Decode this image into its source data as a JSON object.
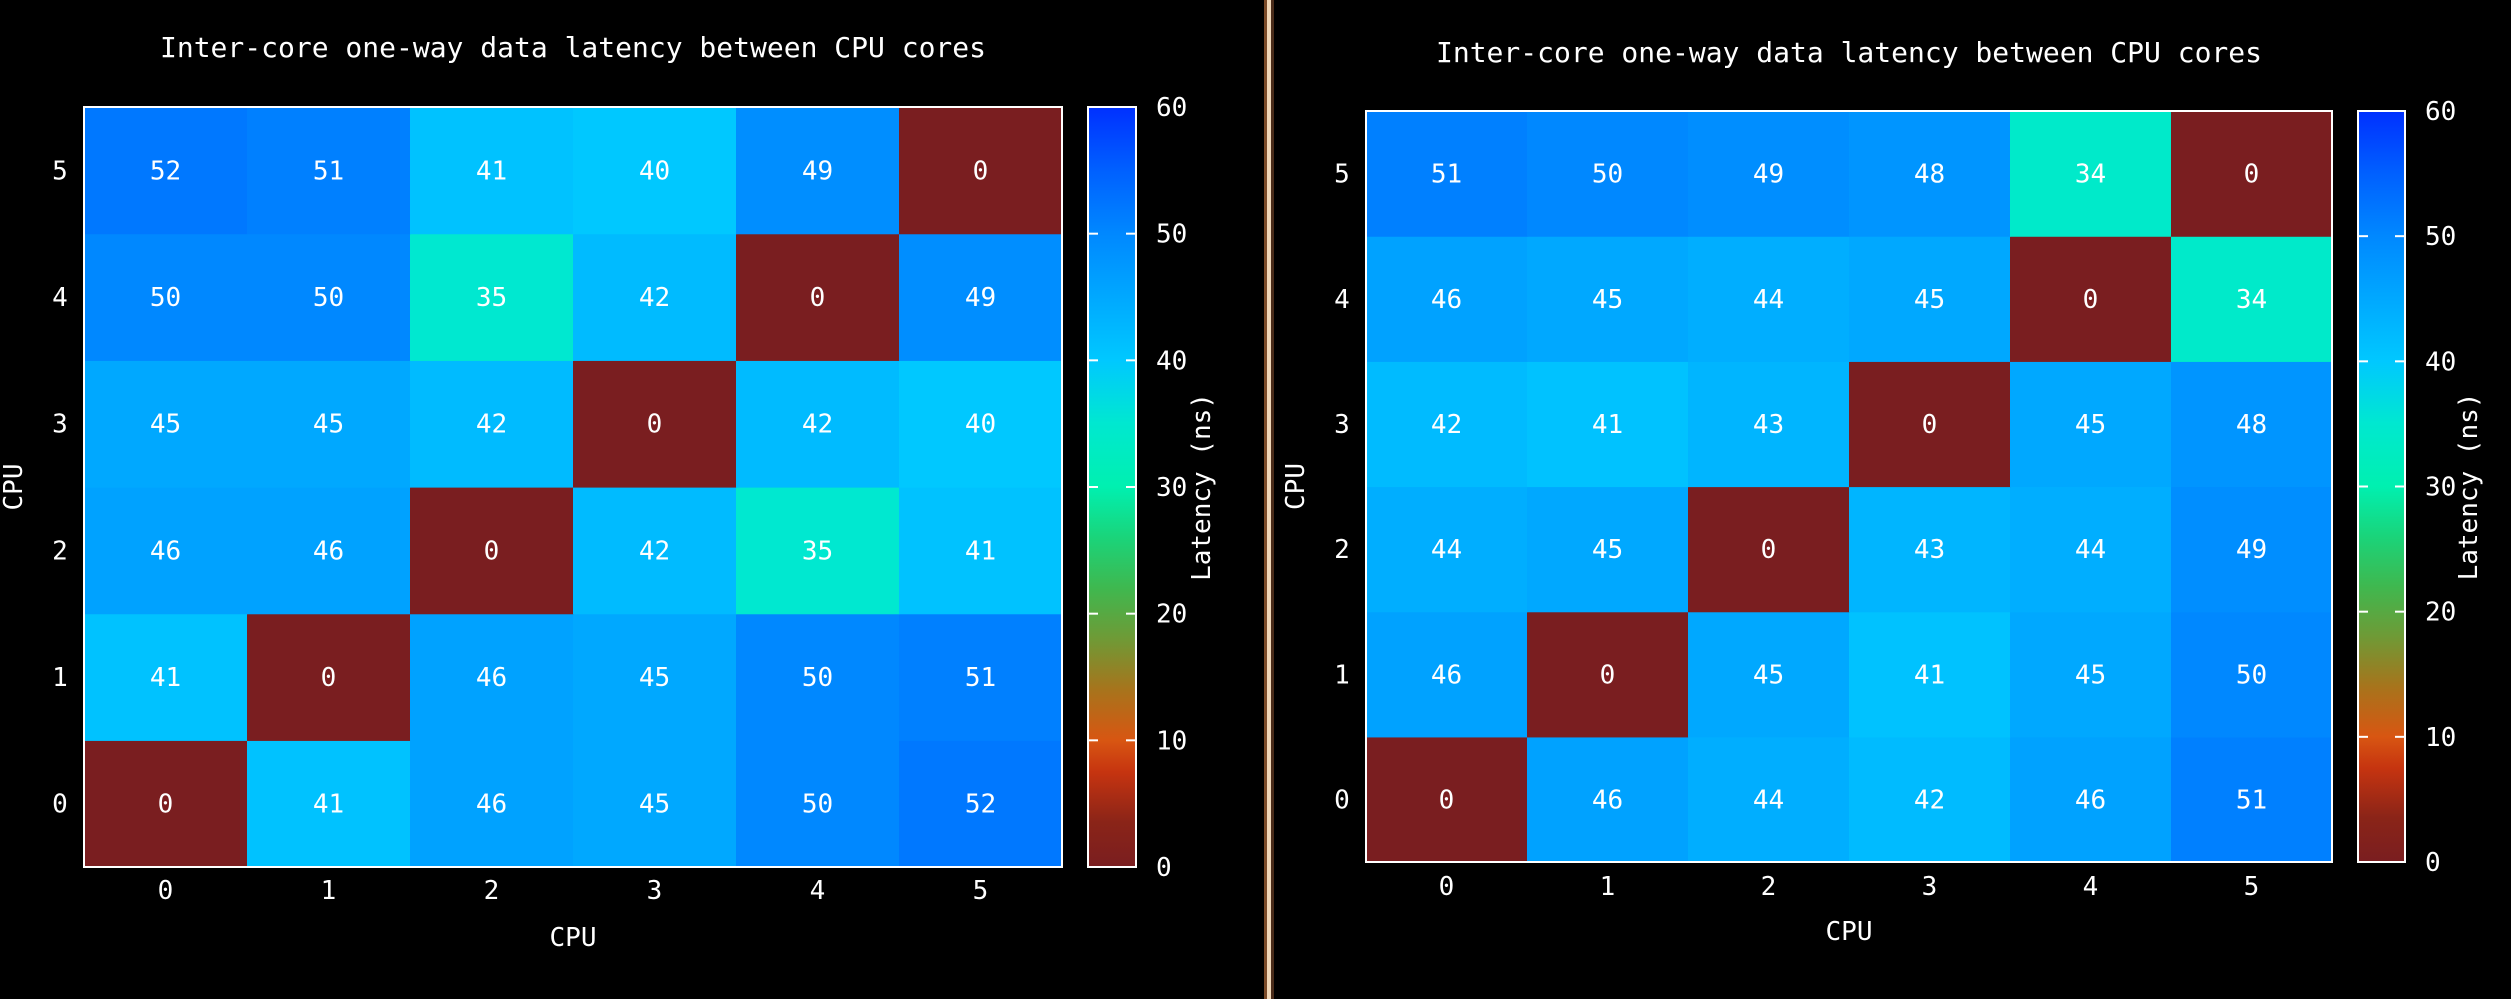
{
  "colors": {
    "background": "#000000",
    "axis": "#ffffff",
    "text": "#ffffff",
    "colormap": [
      [
        0,
        "#7a1e20"
      ],
      [
        3.5,
        "#8a2418"
      ],
      [
        7.5,
        "#c63410"
      ],
      [
        10,
        "#d85612"
      ],
      [
        14,
        "#a7741c"
      ],
      [
        18,
        "#6f9a36"
      ],
      [
        22,
        "#3fb84f"
      ],
      [
        26,
        "#1ad47a"
      ],
      [
        30,
        "#00f0b0"
      ],
      [
        35,
        "#00e8d0"
      ],
      [
        40,
        "#00c8ff"
      ],
      [
        45,
        "#00a8ff"
      ],
      [
        50,
        "#0088ff"
      ],
      [
        55,
        "#0060ff"
      ],
      [
        60,
        "#0030ff"
      ]
    ]
  },
  "chart_data": [
    {
      "type": "heatmap",
      "title": "Inter-core one-way data latency between CPU cores",
      "xlabel": "CPU",
      "ylabel": "CPU",
      "colorbar_label": "Latency (ns)",
      "colorbar_range": [
        0,
        60
      ],
      "colorbar_ticks": [
        "0",
        "10",
        "20",
        "30",
        "40",
        "50",
        "60"
      ],
      "x": [
        "0",
        "1",
        "2",
        "3",
        "4",
        "5"
      ],
      "y": [
        "0",
        "1",
        "2",
        "3",
        "4",
        "5"
      ],
      "values": [
        [
          0,
          41,
          46,
          45,
          50,
          52
        ],
        [
          41,
          0,
          46,
          45,
          50,
          51
        ],
        [
          46,
          46,
          0,
          42,
          35,
          41
        ],
        [
          45,
          45,
          42,
          0,
          42,
          40
        ],
        [
          50,
          50,
          35,
          42,
          0,
          49
        ],
        [
          52,
          51,
          41,
          40,
          49,
          0
        ]
      ]
    },
    {
      "type": "heatmap",
      "title": "Inter-core one-way data latency between CPU cores",
      "xlabel": "CPU",
      "ylabel": "CPU",
      "colorbar_label": "Latency (ns)",
      "colorbar_range": [
        0,
        60
      ],
      "colorbar_ticks": [
        "0",
        "10",
        "20",
        "30",
        "40",
        "50",
        "60"
      ],
      "x": [
        "0",
        "1",
        "2",
        "3",
        "4",
        "5"
      ],
      "y": [
        "0",
        "1",
        "2",
        "3",
        "4",
        "5"
      ],
      "values": [
        [
          0,
          46,
          44,
          42,
          46,
          51
        ],
        [
          46,
          0,
          45,
          41,
          45,
          50
        ],
        [
          44,
          45,
          0,
          43,
          44,
          49
        ],
        [
          42,
          41,
          43,
          0,
          45,
          48
        ],
        [
          46,
          45,
          44,
          45,
          0,
          34
        ],
        [
          51,
          50,
          49,
          48,
          34,
          0
        ]
      ]
    }
  ]
}
